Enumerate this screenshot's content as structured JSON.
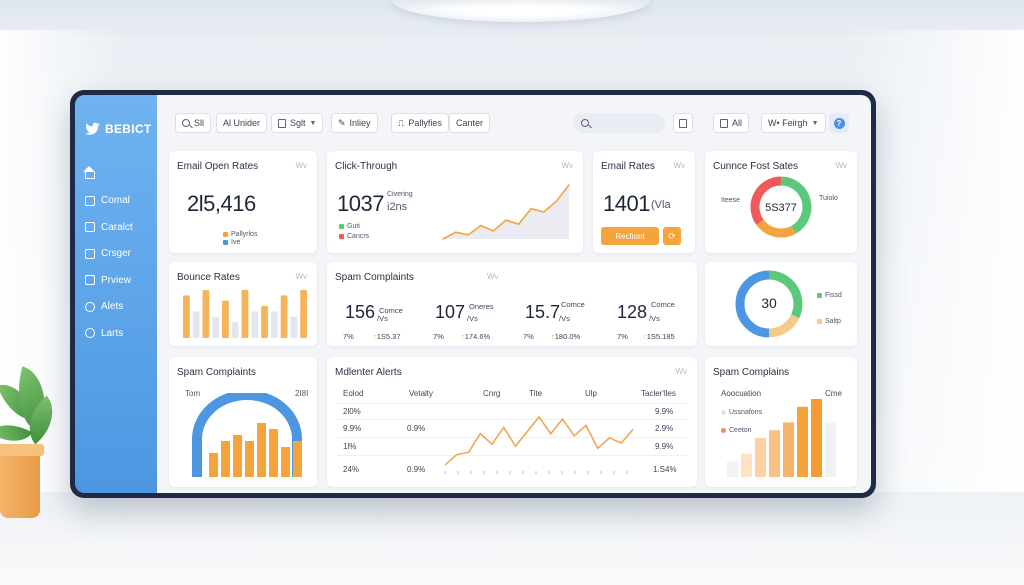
{
  "brand": {
    "name": "BEBICT"
  },
  "sidebar": {
    "items": [
      {
        "label": "",
        "icon": "home-icon"
      },
      {
        "label": "Comal",
        "icon": "grid-icon"
      },
      {
        "label": "Caralct",
        "icon": "box-icon"
      },
      {
        "label": "Crsger",
        "icon": "box-icon"
      },
      {
        "label": "Prview",
        "icon": "box-icon"
      },
      {
        "label": "Alets",
        "icon": "ring-icon"
      },
      {
        "label": "Larts",
        "icon": "ring-icon"
      }
    ]
  },
  "toolbar": {
    "search_btn": "Sll",
    "under_btn": "Al Unider",
    "split_btn": "Sglt",
    "inliey_btn": "Inliey",
    "pallyfies_btn": "Pallyfies",
    "canter_btn": "Canter",
    "search_placeholder": "",
    "all_btn": "All",
    "language_btn": "W• Feirgh"
  },
  "cards": {
    "email_open": {
      "title": "Email Open Rates",
      "more": "Wv",
      "value": "2l5,416",
      "legend": [
        "Pallyrlos",
        "Ive"
      ]
    },
    "click_through": {
      "title": "Click-Through",
      "more": "Wv",
      "value": "1037",
      "unit": "i2ns",
      "unit_label": "Civering",
      "legend": [
        "Guti",
        "Cancrs"
      ]
    },
    "email_rates": {
      "title": "Email Rates",
      "more": "Wv",
      "value": "1401",
      "unit": "(Vla",
      "button": "Recfiont"
    },
    "conversion": {
      "title": "Cunnce Fost Sates",
      "more": "Wv",
      "center": "5S377",
      "left_label": "Iteese",
      "right_label": "Tuiolo"
    },
    "bounce": {
      "title": "Bounce Rates",
      "more": "Wv"
    },
    "spam_top": {
      "title": "Spam Complaints",
      "more": "Wv",
      "stats": [
        {
          "value": "156",
          "unit": "/Vs",
          "label": "Comce",
          "pct": "7%",
          "delta": "1S5.37"
        },
        {
          "value": "107",
          "unit": "/Vs",
          "label": "Oneres",
          "pct": "7%",
          "delta": "174.6%"
        },
        {
          "value": "15.7",
          "unit": "/Vs",
          "label": "Comce",
          "pct": "7%",
          "delta": "180.0%"
        },
        {
          "value": "128",
          "unit": "/Vs",
          "label": "Comce",
          "pct": "7%",
          "delta": "1S5.185"
        }
      ]
    },
    "ring": {
      "center": "30",
      "right_label": "Fissd",
      "bottom_label": "Saltp"
    },
    "spam_bottom": {
      "title": "Spam Complaints",
      "left_label": "Tom",
      "right_label": "2I8I"
    },
    "alerts": {
      "title": "Mdlenter Alerts",
      "more": "Wv",
      "columns": [
        "Eolod",
        "Vetalty",
        "Cnrg",
        "Tite",
        "Ulp",
        "Tacler'lles"
      ],
      "rows": [
        {
          "left": "2l0%",
          "mid": "",
          "right": "9.9%"
        },
        {
          "left": "9.9%",
          "mid": "0.9%",
          "right": "2.9%"
        },
        {
          "left": "1l%",
          "mid": "",
          "right": "9.9%"
        },
        {
          "left": "24%",
          "mid": "0.9%",
          "right": "1.S4%"
        }
      ]
    },
    "spam_right": {
      "title": "Spam Complains",
      "header_left": "Aoocuation",
      "header_right": "Cme",
      "legend": [
        "Ussnafons",
        "Ceeton"
      ]
    }
  },
  "chart_data": [
    {
      "type": "line",
      "title": "Click-Through",
      "values": [
        2,
        3,
        2.6,
        4,
        3.2,
        4.8,
        4.2,
        6.5,
        6,
        7.6,
        10
      ]
    },
    {
      "type": "pie",
      "title": "Cunnce Fost Sates",
      "series": [
        {
          "name": "",
          "value": 42,
          "color": "#5cc97a"
        },
        {
          "name": "",
          "value": 23,
          "color": "#f5a43d"
        },
        {
          "name": "",
          "value": 35,
          "color": "#ef5b5b"
        }
      ]
    },
    {
      "type": "bar",
      "title": "Bounce Rates",
      "values": [
        8,
        5,
        9,
        4,
        7,
        3,
        9,
        5,
        6,
        5,
        8,
        4,
        9
      ]
    },
    {
      "type": "pie",
      "title": "ring",
      "series": [
        {
          "name": "",
          "value": 32,
          "color": "#5cc97a"
        },
        {
          "name": "",
          "value": 18,
          "color": "#f5c98a"
        },
        {
          "name": "",
          "value": 50,
          "color": "#4d97e2"
        }
      ]
    },
    {
      "type": "bar",
      "title": "Spam Complaints",
      "values": [
        4,
        6,
        7,
        6,
        9,
        8,
        5,
        6
      ]
    },
    {
      "type": "line",
      "title": "Mdlenter Alerts",
      "values": [
        1,
        2,
        2.2,
        4,
        3,
        4.6,
        2.8,
        4.2,
        5.6,
        4,
        5.4,
        3.8,
        4.8,
        2.6,
        3.6,
        3.1,
        4.4
      ]
    },
    {
      "type": "bar",
      "title": "Spam Complains",
      "values": [
        2,
        3,
        5,
        6,
        7,
        9,
        10,
        7
      ]
    }
  ],
  "colors": {
    "accent": "#4d97e2",
    "orange": "#f5a43d",
    "green": "#5cc97a",
    "red": "#ef5b5b"
  }
}
